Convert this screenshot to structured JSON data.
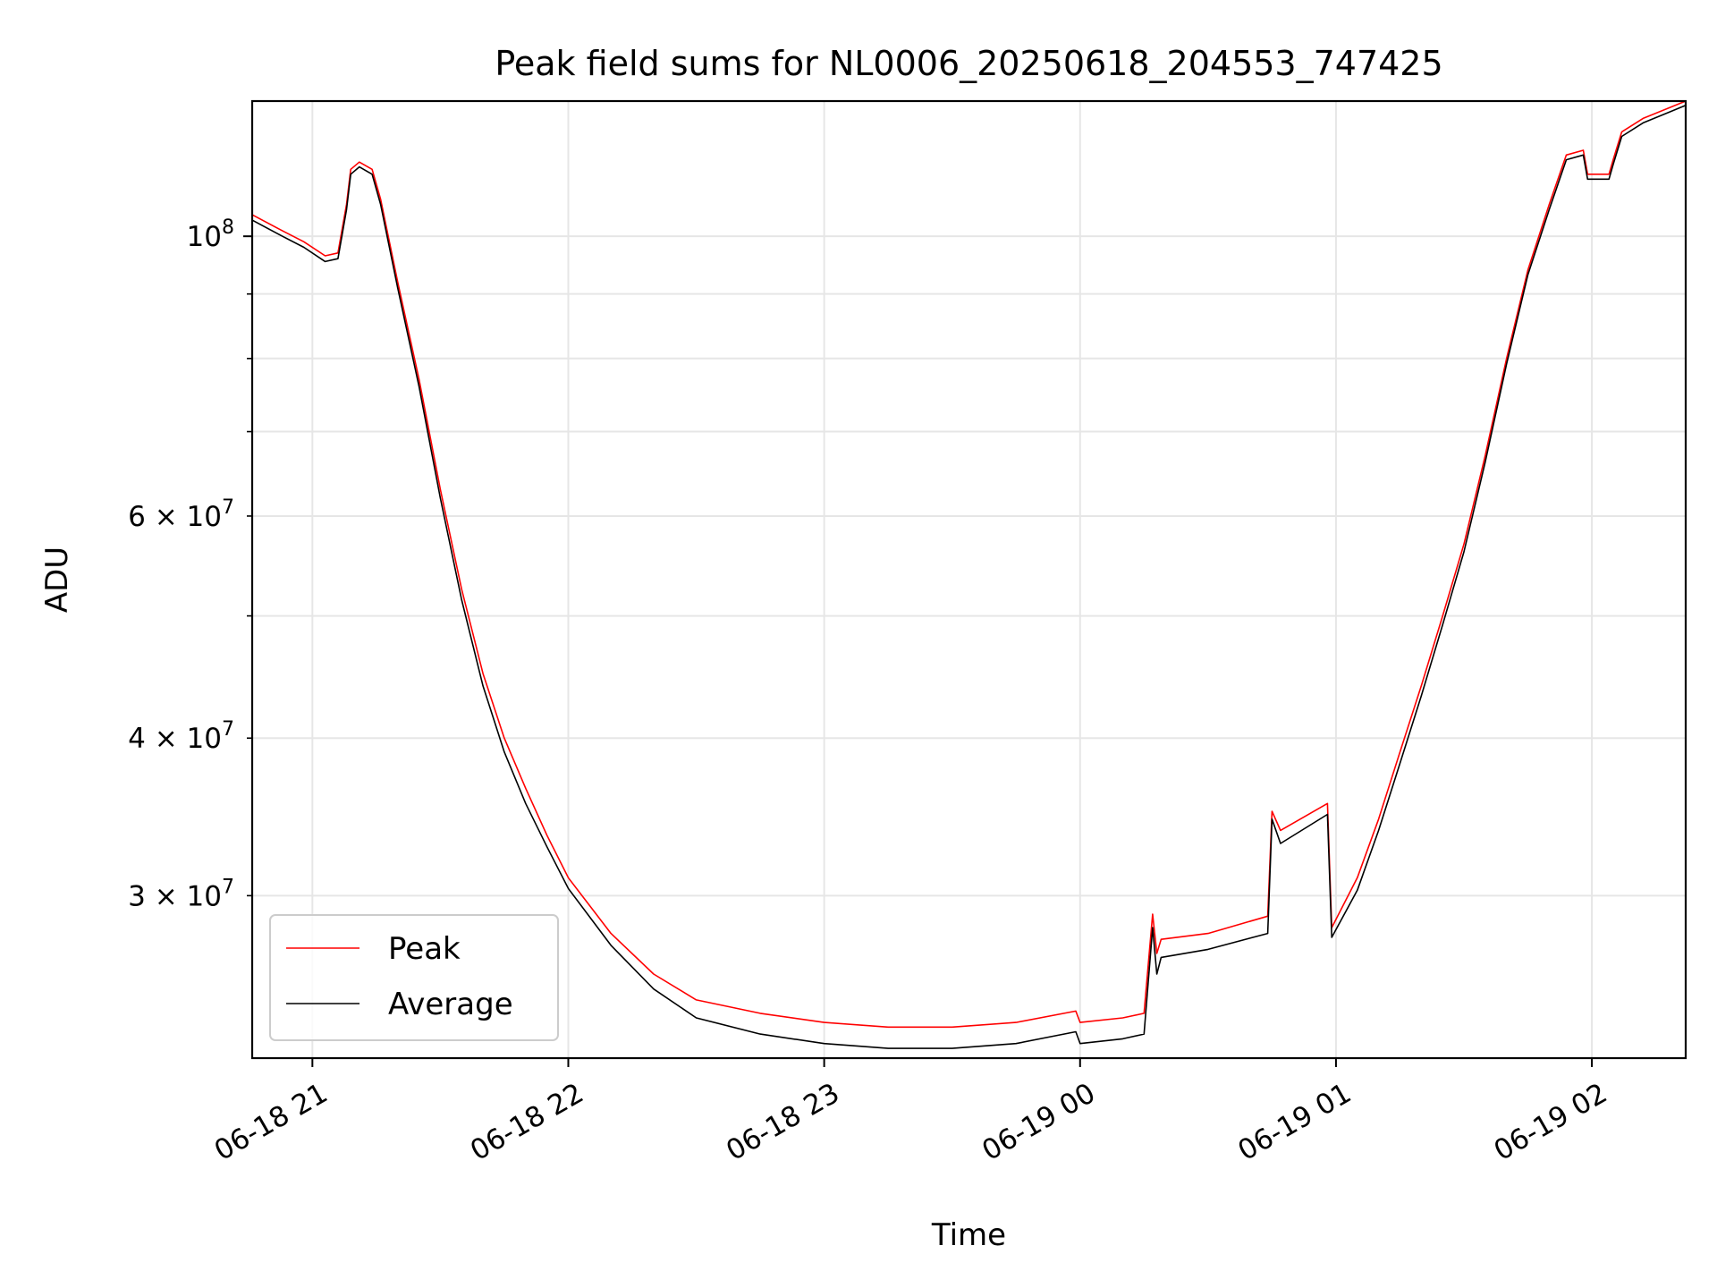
{
  "chart_data": {
    "type": "line",
    "title": "Peak field sums for NL0006_20250618_204553_747425",
    "xlabel": "Time",
    "ylabel": "ADU",
    "x_scale": "time",
    "y_scale": "log",
    "xlim": [
      "2025-06-18 20:45:53",
      "2025-06-19 02:22:00"
    ],
    "ylim": [
      22300000,
      128000000
    ],
    "x_ticks": [
      {
        "value": "2025-06-18 21:00",
        "label": "06-18 21"
      },
      {
        "value": "2025-06-18 22:00",
        "label": "06-18 22"
      },
      {
        "value": "2025-06-18 23:00",
        "label": "06-18 23"
      },
      {
        "value": "2025-06-19 00:00",
        "label": "06-19 00"
      },
      {
        "value": "2025-06-19 01:00",
        "label": "06-19 01"
      },
      {
        "value": "2025-06-19 02:00",
        "label": "06-19 02"
      }
    ],
    "y_major_ticks": [
      {
        "value": 100000000,
        "base": "10",
        "exp": "8"
      }
    ],
    "y_minor_ticks": [
      {
        "value": 30000000,
        "base": "3 × 10",
        "exp": "7"
      },
      {
        "value": 40000000,
        "base": "4 × 10",
        "exp": "7"
      },
      {
        "value": 50000000
      },
      {
        "value": 60000000,
        "base": "6 × 10",
        "exp": "7"
      },
      {
        "value": 70000000
      },
      {
        "value": 80000000
      },
      {
        "value": 90000000
      }
    ],
    "grid": true,
    "legend": {
      "position": "lower-left"
    },
    "series": [
      {
        "name": "Peak",
        "color": "#ff0000",
        "x": [
          "2025-06-18 20:45:53",
          "2025-06-18 20:53",
          "2025-06-18 20:58",
          "2025-06-18 21:03",
          "2025-06-18 21:06",
          "2025-06-18 21:08",
          "2025-06-18 21:09",
          "2025-06-18 21:11",
          "2025-06-18 21:14",
          "2025-06-18 21:16",
          "2025-06-18 21:20",
          "2025-06-18 21:25",
          "2025-06-18 21:30",
          "2025-06-18 21:35",
          "2025-06-18 21:40",
          "2025-06-18 21:45",
          "2025-06-18 21:50",
          "2025-06-18 21:55",
          "2025-06-18 22:00",
          "2025-06-18 22:10",
          "2025-06-18 22:20",
          "2025-06-18 22:30",
          "2025-06-18 22:45",
          "2025-06-18 23:00",
          "2025-06-18 23:15",
          "2025-06-18 23:30",
          "2025-06-18 23:45",
          "2025-06-18 23:59",
          "2025-06-19 00:00",
          "2025-06-19 00:10",
          "2025-06-19 00:15",
          "2025-06-19 00:17",
          "2025-06-19 00:18",
          "2025-06-19 00:19",
          "2025-06-19 00:30",
          "2025-06-19 00:44",
          "2025-06-19 00:45",
          "2025-06-19 00:47",
          "2025-06-19 00:58",
          "2025-06-19 00:59",
          "2025-06-19 01:05",
          "2025-06-19 01:10",
          "2025-06-19 01:15",
          "2025-06-19 01:20",
          "2025-06-19 01:25",
          "2025-06-19 01:30",
          "2025-06-19 01:35",
          "2025-06-19 01:40",
          "2025-06-19 01:45",
          "2025-06-19 01:50",
          "2025-06-19 01:54",
          "2025-06-19 01:58",
          "2025-06-19 01:59",
          "2025-06-19 02:04",
          "2025-06-19 02:05",
          "2025-06-19 02:07",
          "2025-06-19 02:12",
          "2025-06-19 02:22"
        ],
        "y": [
          104000000,
          101000000,
          99000000,
          96500000,
          97000000,
          106000000,
          113000000,
          114500000,
          113000000,
          107000000,
          92000000,
          77000000,
          63000000,
          52500000,
          45000000,
          40000000,
          36500000,
          33500000,
          31000000,
          28000000,
          26000000,
          24800000,
          24200000,
          23800000,
          23600000,
          23600000,
          23800000,
          24300000,
          23800000,
          24000000,
          24200000,
          29000000,
          27000000,
          27700000,
          28000000,
          28900000,
          35000000,
          33800000,
          35500000,
          28300000,
          31000000,
          34500000,
          39000000,
          44000000,
          50000000,
          57000000,
          67000000,
          80000000,
          94000000,
          106000000,
          116000000,
          117000000,
          112000000,
          112000000,
          115000000,
          121000000,
          124000000,
          128000000
        ]
      },
      {
        "name": "Average",
        "color": "#000000",
        "x": [
          "2025-06-18 20:45:53",
          "2025-06-18 20:53",
          "2025-06-18 20:58",
          "2025-06-18 21:03",
          "2025-06-18 21:06",
          "2025-06-18 21:08",
          "2025-06-18 21:09",
          "2025-06-18 21:11",
          "2025-06-18 21:14",
          "2025-06-18 21:16",
          "2025-06-18 21:20",
          "2025-06-18 21:25",
          "2025-06-18 21:30",
          "2025-06-18 21:35",
          "2025-06-18 21:40",
          "2025-06-18 21:45",
          "2025-06-18 21:50",
          "2025-06-18 21:55",
          "2025-06-18 22:00",
          "2025-06-18 22:10",
          "2025-06-18 22:20",
          "2025-06-18 22:30",
          "2025-06-18 22:45",
          "2025-06-18 23:00",
          "2025-06-18 23:15",
          "2025-06-18 23:30",
          "2025-06-18 23:45",
          "2025-06-18 23:59",
          "2025-06-19 00:00",
          "2025-06-19 00:10",
          "2025-06-19 00:15",
          "2025-06-19 00:17",
          "2025-06-19 00:18",
          "2025-06-19 00:19",
          "2025-06-19 00:30",
          "2025-06-19 00:44",
          "2025-06-19 00:45",
          "2025-06-19 00:47",
          "2025-06-19 00:58",
          "2025-06-19 00:59",
          "2025-06-19 01:05",
          "2025-06-19 01:10",
          "2025-06-19 01:15",
          "2025-06-19 01:20",
          "2025-06-19 01:25",
          "2025-06-19 01:30",
          "2025-06-19 01:35",
          "2025-06-19 01:40",
          "2025-06-19 01:45",
          "2025-06-19 01:50",
          "2025-06-19 01:54",
          "2025-06-19 01:58",
          "2025-06-19 01:59",
          "2025-06-19 02:04",
          "2025-06-19 02:05",
          "2025-06-19 02:07",
          "2025-06-19 02:12",
          "2025-06-19 02:22"
        ],
        "y": [
          103000000,
          100000000,
          98000000,
          95500000,
          96000000,
          105000000,
          112000000,
          113500000,
          112000000,
          106000000,
          91000000,
          76000000,
          62000000,
          51500000,
          44000000,
          39000000,
          35500000,
          32800000,
          30400000,
          27400000,
          25300000,
          24000000,
          23300000,
          22900000,
          22700000,
          22700000,
          22900000,
          23400000,
          22900000,
          23100000,
          23300000,
          28300000,
          26000000,
          26800000,
          27200000,
          28000000,
          34500000,
          33000000,
          34800000,
          27800000,
          30300000,
          33800000,
          38200000,
          43200000,
          49200000,
          56200000,
          66200000,
          79200000,
          93200000,
          105000000,
          115000000,
          116000000,
          111000000,
          111000000,
          114000000,
          120000000,
          123000000,
          127000000
        ]
      }
    ]
  }
}
